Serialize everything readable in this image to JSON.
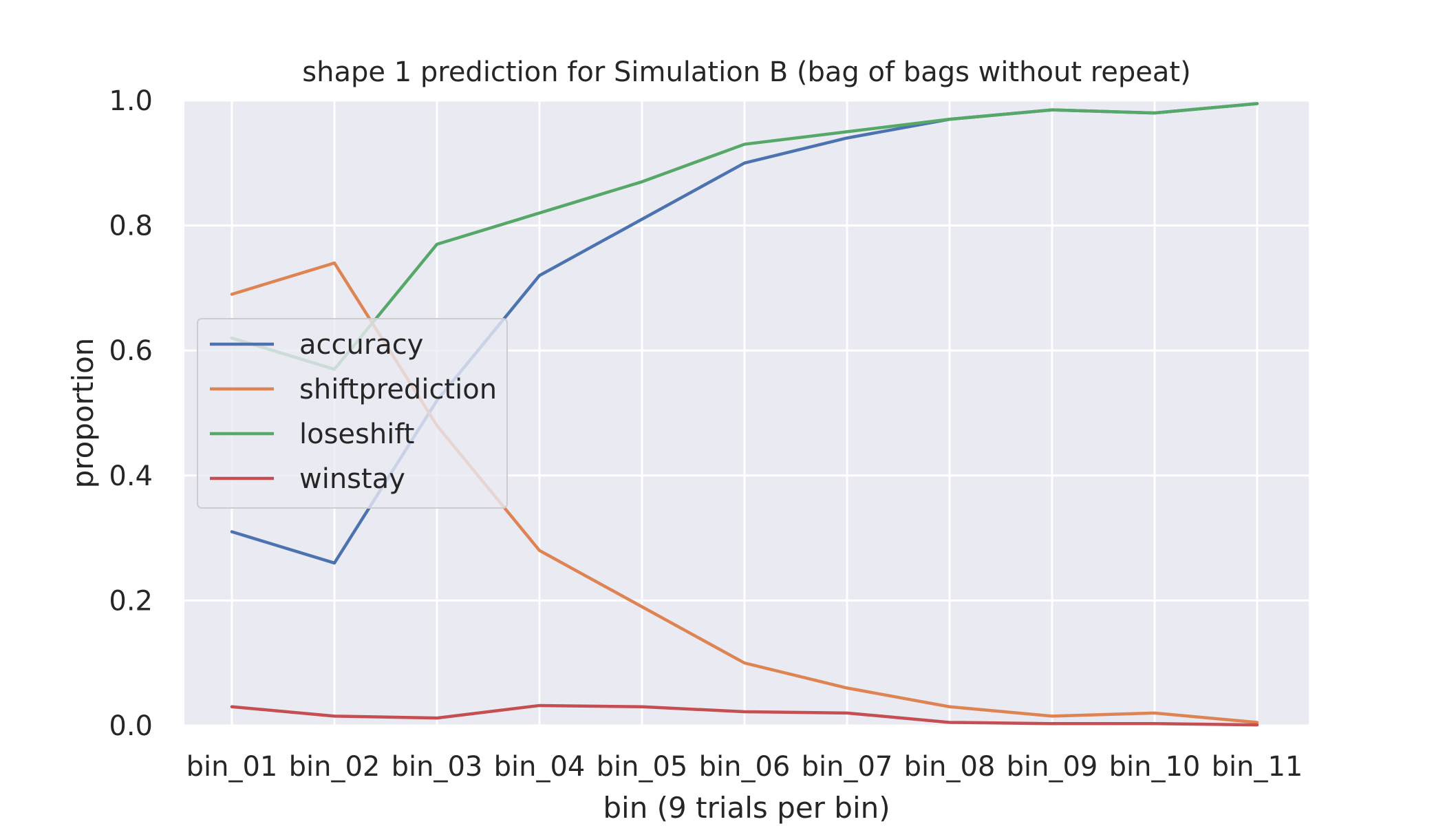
{
  "chart_data": {
    "type": "line",
    "title": "shape 1 prediction for Simulation B (bag of bags without repeat)",
    "xlabel": "bin (9 trials per bin)",
    "ylabel": "proportion",
    "categories": [
      "bin_01",
      "bin_02",
      "bin_03",
      "bin_04",
      "bin_05",
      "bin_06",
      "bin_07",
      "bin_08",
      "bin_09",
      "bin_10",
      "bin_11"
    ],
    "ylim": [
      0,
      1.0
    ],
    "yticks": [
      "0.0",
      "0.2",
      "0.4",
      "0.6",
      "0.8",
      "1.0"
    ],
    "grid": true,
    "legend_position": "center-left",
    "series": [
      {
        "name": "accuracy",
        "color": "#4c72b0",
        "values": [
          0.31,
          0.26,
          0.52,
          0.72,
          0.81,
          0.9,
          0.94,
          0.97,
          0.985,
          0.98,
          0.995
        ]
      },
      {
        "name": "shiftprediction",
        "color": "#dd8452",
        "values": [
          0.69,
          0.74,
          0.48,
          0.28,
          0.19,
          0.1,
          0.06,
          0.03,
          0.015,
          0.02,
          0.005
        ]
      },
      {
        "name": "loseshift",
        "color": "#55a868",
        "values": [
          0.62,
          0.57,
          0.77,
          0.82,
          0.87,
          0.93,
          0.95,
          0.97,
          0.985,
          0.98,
          0.995
        ]
      },
      {
        "name": "winstay",
        "color": "#c44e52",
        "values": [
          0.03,
          0.015,
          0.012,
          0.032,
          0.03,
          0.022,
          0.02,
          0.005,
          0.003,
          0.003,
          0.001
        ]
      }
    ]
  }
}
